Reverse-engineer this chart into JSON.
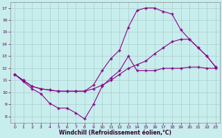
{
  "xlabel": "Windchill (Refroidissement éolien,°C)",
  "bg_color": "#c8eded",
  "line_color": "#880088",
  "grid_color": "#aacccc",
  "xlim": [
    -0.5,
    23.5
  ],
  "ylim": [
    7.5,
    17.5
  ],
  "xticks": [
    0,
    1,
    2,
    3,
    4,
    5,
    6,
    7,
    8,
    9,
    10,
    11,
    12,
    13,
    14,
    15,
    16,
    17,
    18,
    19,
    20,
    21,
    22,
    23
  ],
  "yticks": [
    8,
    9,
    10,
    11,
    12,
    13,
    14,
    15,
    16,
    17
  ],
  "line1_x": [
    0,
    1,
    2,
    3,
    4,
    5,
    6,
    7,
    8,
    9,
    10,
    11,
    12,
    13,
    14,
    15,
    16,
    17,
    18,
    19,
    20,
    21,
    22,
    23
  ],
  "line1_y": [
    11.5,
    10.9,
    10.3,
    9.9,
    9.1,
    8.7,
    8.7,
    8.3,
    7.8,
    9.0,
    10.5,
    11.2,
    11.8,
    13.0,
    11.8,
    11.8,
    11.8,
    12.0,
    12.0,
    12.0,
    12.1,
    12.1,
    12.0,
    12.0
  ],
  "line2_x": [
    0,
    1,
    2,
    3,
    4,
    5,
    6,
    7,
    8,
    9,
    10,
    11,
    12,
    13,
    14,
    15,
    16,
    17,
    18,
    19,
    20,
    21,
    22,
    23
  ],
  "line2_y": [
    11.5,
    11.0,
    10.5,
    10.3,
    10.2,
    10.1,
    10.1,
    10.1,
    10.1,
    10.3,
    10.6,
    11.0,
    11.5,
    12.0,
    12.3,
    12.6,
    13.2,
    13.7,
    14.2,
    14.4,
    14.4,
    13.7,
    13.0,
    12.1
  ],
  "line3_x": [
    0,
    1,
    2,
    3,
    4,
    5,
    6,
    7,
    8,
    9,
    10,
    11,
    12,
    13,
    14,
    15,
    16,
    17,
    18,
    19,
    20,
    21,
    22,
    23
  ],
  "line3_y": [
    11.5,
    11.0,
    10.5,
    10.3,
    10.2,
    10.1,
    10.1,
    10.1,
    10.1,
    10.6,
    11.8,
    12.8,
    13.5,
    15.4,
    16.8,
    17.0,
    17.0,
    16.7,
    16.5,
    15.2,
    14.4,
    13.7,
    13.0,
    12.1
  ]
}
